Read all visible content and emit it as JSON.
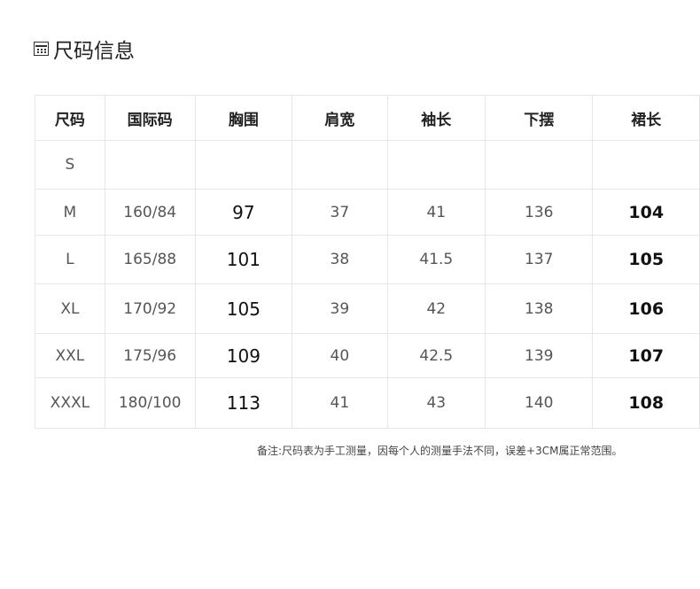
{
  "title": "尺码信息",
  "table": {
    "headers": [
      "尺码",
      "国际码",
      "胸围",
      "肩宽",
      "袖长",
      "下摆",
      "裙长"
    ],
    "rows": [
      [
        "S",
        "",
        "",
        "",
        "",
        "",
        ""
      ],
      [
        "M",
        "160/84",
        "97",
        "37",
        "41",
        "136",
        "104"
      ],
      [
        "L",
        "165/88",
        "101",
        "38",
        "41.5",
        "137",
        "105"
      ],
      [
        "XL",
        "170/92",
        "105",
        "39",
        "42",
        "138",
        "106"
      ],
      [
        "XXL",
        "175/96",
        "109",
        "40",
        "42.5",
        "139",
        "107"
      ],
      [
        "XXXL",
        "180/100",
        "113",
        "41",
        "43",
        "140",
        "108"
      ]
    ]
  },
  "note": "备注:尺码表为手工测量，因每个人的测量手法不同，误差+3CM属正常范围。"
}
